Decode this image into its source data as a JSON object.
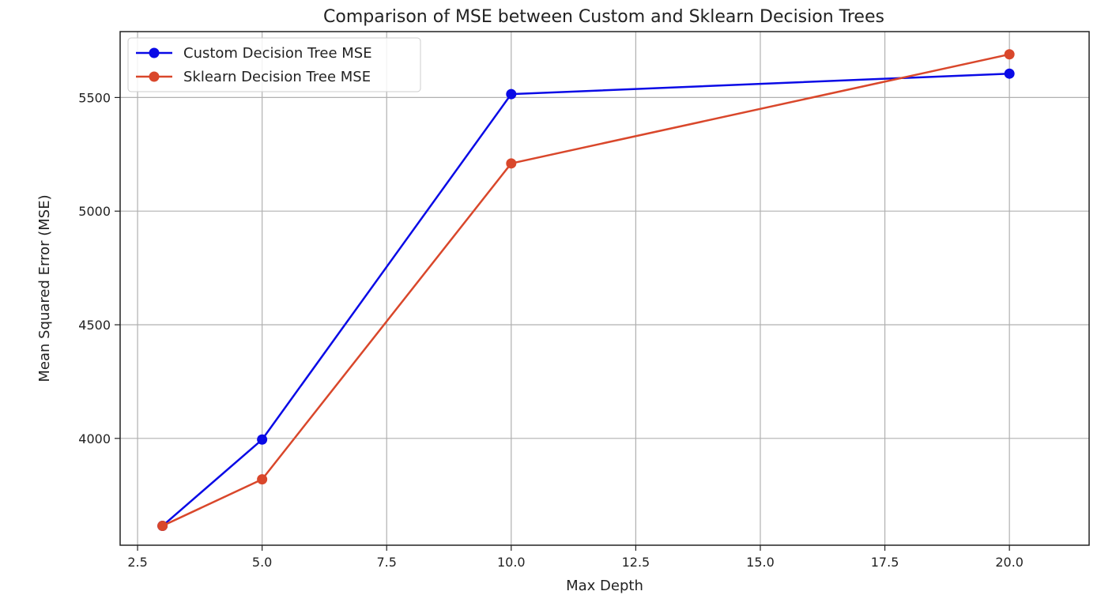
{
  "chart_data": {
    "type": "line",
    "title": "Comparison of MSE between Custom and Sklearn Decision Trees",
    "xlabel": "Max Depth",
    "ylabel": "Mean Squared Error (MSE)",
    "x": [
      3,
      5,
      10,
      20
    ],
    "xlim": [
      2.15,
      21.6
    ],
    "ylim": [
      3530,
      5790
    ],
    "xticks": [
      2.5,
      5.0,
      7.5,
      10.0,
      12.5,
      15.0,
      17.5,
      20.0
    ],
    "xtick_labels": [
      "2.5",
      "5.0",
      "7.5",
      "10.0",
      "12.5",
      "15.0",
      "17.5",
      "20.0"
    ],
    "yticks": [
      4000,
      4500,
      5000,
      5500
    ],
    "ytick_labels": [
      "4000",
      "4500",
      "5000",
      "5500"
    ],
    "grid": true,
    "legend_position": "top-left",
    "series": [
      {
        "name": "Custom Decision Tree MSE",
        "color": "#0a0ae6",
        "values": [
          3615,
          3995,
          5515,
          5605
        ]
      },
      {
        "name": "Sklearn Decision Tree MSE",
        "color": "#d9472b",
        "values": [
          3615,
          3820,
          5210,
          5690
        ]
      }
    ]
  }
}
